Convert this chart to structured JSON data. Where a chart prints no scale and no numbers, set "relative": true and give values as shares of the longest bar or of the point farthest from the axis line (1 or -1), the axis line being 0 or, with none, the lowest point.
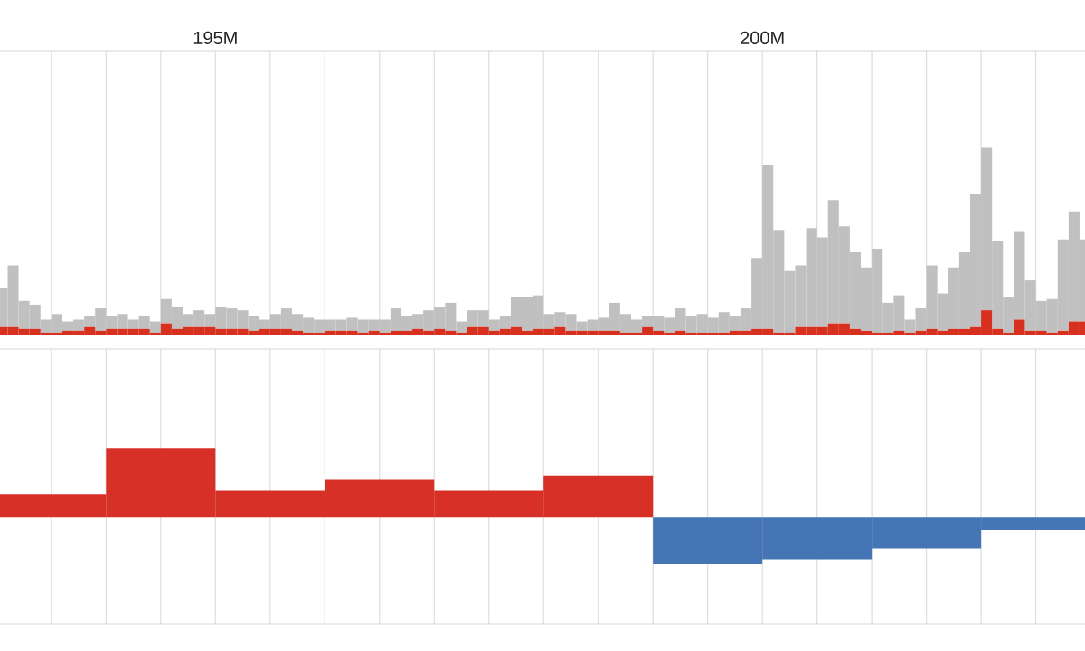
{
  "chart_data": [
    {
      "type": "bar",
      "relative": true,
      "stacked": true,
      "grid": "x",
      "tick_labels": "x",
      "xlim": [
        193.03,
        202.95
      ],
      "xticks": [
        {
          "value": 193.5,
          "label": null
        },
        {
          "value": 194,
          "label": null
        },
        {
          "value": 194.5,
          "label": null
        },
        {
          "value": 195,
          "label": "195M"
        },
        {
          "value": 195.5,
          "label": null
        },
        {
          "value": 196,
          "label": null
        },
        {
          "value": 196.5,
          "label": null
        },
        {
          "value": 197,
          "label": null
        },
        {
          "value": 197.5,
          "label": null
        },
        {
          "value": 198,
          "label": null
        },
        {
          "value": 198.5,
          "label": null
        },
        {
          "value": 199,
          "label": null
        },
        {
          "value": 199.5,
          "label": null
        },
        {
          "value": 200,
          "label": "200M"
        },
        {
          "value": 200.5,
          "label": null
        },
        {
          "value": 201,
          "label": null
        },
        {
          "value": 201.5,
          "label": null
        },
        {
          "value": 202,
          "label": null
        },
        {
          "value": 202.5,
          "label": null
        }
      ],
      "x": [
        193.05,
        193.15,
        193.25,
        193.35,
        193.45,
        193.55,
        193.65,
        193.75,
        193.85,
        193.95,
        194.05,
        194.15,
        194.25,
        194.35,
        194.45,
        194.55,
        194.65,
        194.75,
        194.85,
        194.95,
        195.05,
        195.15,
        195.25,
        195.35,
        195.45,
        195.55,
        195.65,
        195.75,
        195.85,
        195.95,
        196.05,
        196.15,
        196.25,
        196.35,
        196.45,
        196.55,
        196.65,
        196.75,
        196.85,
        196.95,
        197.05,
        197.15,
        197.25,
        197.35,
        197.45,
        197.55,
        197.65,
        197.75,
        197.85,
        197.95,
        198.05,
        198.15,
        198.25,
        198.35,
        198.45,
        198.55,
        198.65,
        198.75,
        198.85,
        198.95,
        199.05,
        199.15,
        199.25,
        199.35,
        199.45,
        199.55,
        199.65,
        199.75,
        199.85,
        199.95,
        200.05,
        200.15,
        200.25,
        200.35,
        200.45,
        200.55,
        200.65,
        200.75,
        200.85,
        200.95,
        201.05,
        201.15,
        201.25,
        201.35,
        201.45,
        201.55,
        201.65,
        201.75,
        201.85,
        201.95,
        202.05,
        202.15,
        202.25,
        202.35,
        202.45,
        202.55,
        202.65,
        202.75,
        202.85,
        202.95
      ],
      "series": [
        {
          "color": "#d7301f",
          "values": [
            0.04,
            0.04,
            0.03,
            0.03,
            0.01,
            0.01,
            0.02,
            0.02,
            0.04,
            0.02,
            0.03,
            0.03,
            0.03,
            0.03,
            0.01,
            0.06,
            0.03,
            0.04,
            0.04,
            0.04,
            0.03,
            0.03,
            0.03,
            0.02,
            0.03,
            0.03,
            0.03,
            0.02,
            0.01,
            0.01,
            0.02,
            0.02,
            0.02,
            0.01,
            0.02,
            0.01,
            0.02,
            0.02,
            0.03,
            0.02,
            0.03,
            0.02,
            0.01,
            0.04,
            0.04,
            0.02,
            0.03,
            0.04,
            0.02,
            0.03,
            0.03,
            0.04,
            0.02,
            0.02,
            0.02,
            0.02,
            0.02,
            0.01,
            0.01,
            0.04,
            0.02,
            0.01,
            0.02,
            0.01,
            0.01,
            0.01,
            0.01,
            0.02,
            0.02,
            0.03,
            0.03,
            0.01,
            0.01,
            0.04,
            0.04,
            0.04,
            0.06,
            0.06,
            0.03,
            0.02,
            0.01,
            0.01,
            0.02,
            0.01,
            0.02,
            0.03,
            0.02,
            0.03,
            0.03,
            0.04,
            0.13,
            0.03,
            0.01,
            0.08,
            0.02,
            0.02,
            0.01,
            0.02,
            0.07,
            0.07
          ]
        },
        {
          "color": "#c0c0c0",
          "values": [
            0.21,
            0.33,
            0.15,
            0.13,
            0.07,
            0.1,
            0.05,
            0.06,
            0.06,
            0.12,
            0.07,
            0.08,
            0.05,
            0.07,
            0.06,
            0.13,
            0.12,
            0.07,
            0.09,
            0.07,
            0.12,
            0.11,
            0.1,
            0.08,
            0.05,
            0.08,
            0.11,
            0.09,
            0.08,
            0.07,
            0.06,
            0.06,
            0.07,
            0.07,
            0.06,
            0.07,
            0.12,
            0.08,
            0.08,
            0.11,
            0.12,
            0.15,
            0.06,
            0.09,
            0.09,
            0.06,
            0.07,
            0.16,
            0.18,
            0.18,
            0.08,
            0.08,
            0.09,
            0.05,
            0.06,
            0.07,
            0.15,
            0.1,
            0.07,
            0.06,
            0.08,
            0.08,
            0.12,
            0.09,
            0.1,
            0.08,
            0.11,
            0.08,
            0.12,
            0.38,
            0.88,
            0.55,
            0.33,
            0.33,
            0.53,
            0.48,
            0.66,
            0.52,
            0.41,
            0.34,
            0.45,
            0.16,
            0.19,
            0.07,
            0.12,
            0.34,
            0.2,
            0.33,
            0.41,
            0.71,
            0.87,
            0.47,
            0.19,
            0.47,
            0.27,
            0.16,
            0.18,
            0.49,
            0.59,
            0.44
          ]
        }
      ]
    },
    {
      "type": "bar",
      "relative": true,
      "grid": "x",
      "tick_labels": false,
      "xlim": [
        193.03,
        202.95
      ],
      "xticks": [
        {
          "value": 193.5,
          "label": null
        },
        {
          "value": 194,
          "label": null
        },
        {
          "value": 194.5,
          "label": null
        },
        {
          "value": 195,
          "label": null
        },
        {
          "value": 195.5,
          "label": null
        },
        {
          "value": 196,
          "label": null
        },
        {
          "value": 196.5,
          "label": null
        },
        {
          "value": 197,
          "label": null
        },
        {
          "value": 197.5,
          "label": null
        },
        {
          "value": 198,
          "label": null
        },
        {
          "value": 198.5,
          "label": null
        },
        {
          "value": 199,
          "label": null
        },
        {
          "value": 199.5,
          "label": null
        },
        {
          "value": 200,
          "label": null
        },
        {
          "value": 200.5,
          "label": null
        },
        {
          "value": 201,
          "label": null
        },
        {
          "value": 201.5,
          "label": null
        },
        {
          "value": 202,
          "label": null
        },
        {
          "value": 202.5,
          "label": null
        }
      ],
      "x": [
        193.5,
        194.5,
        195.5,
        196.5,
        197.5,
        198.5,
        199.5,
        200.5,
        201.5,
        202.5
      ],
      "values": [
        0.34,
        1,
        0.39,
        0.55,
        0.39,
        0.61,
        -0.68,
        -0.61,
        -0.45,
        -0.18
      ],
      "colors": [
        "#d73027",
        "#d73027",
        "#d73027",
        "#d73027",
        "#d73027",
        "#d73027",
        "#4575b4",
        "#4575b4",
        "#4575b4",
        "#4575b4"
      ]
    }
  ]
}
